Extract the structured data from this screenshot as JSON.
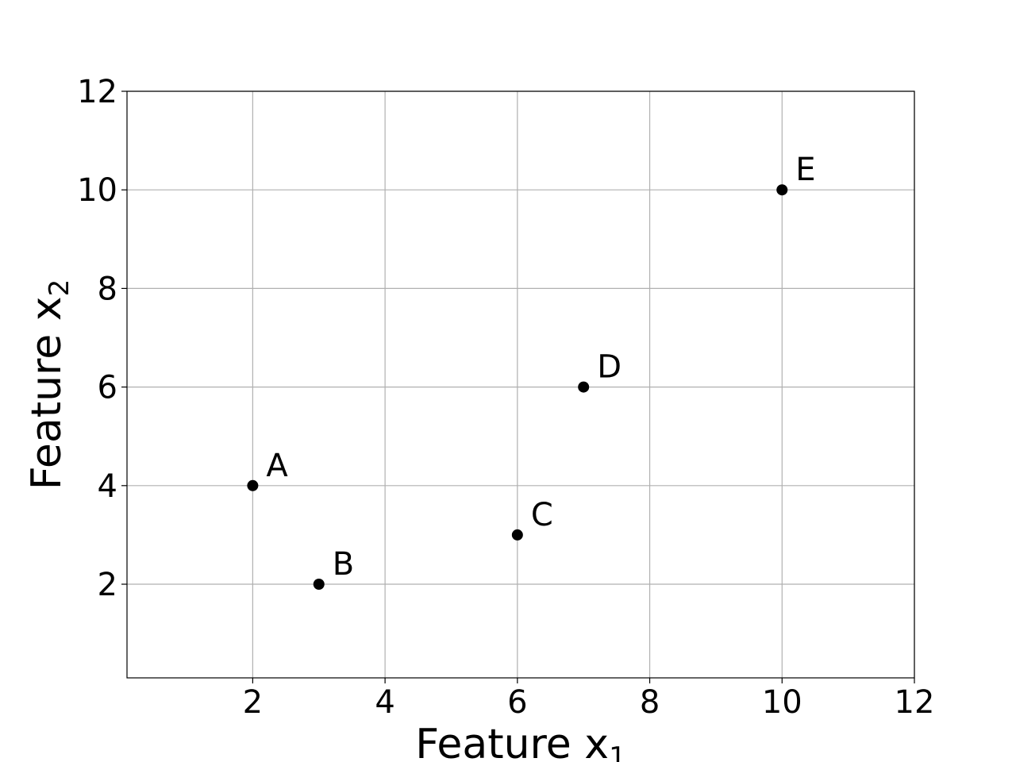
{
  "chart_data": {
    "type": "scatter",
    "title": "",
    "xlabel": "Feature x",
    "xlabel_sub": "1",
    "ylabel": "Feature x",
    "ylabel_sub": "2",
    "xlim": [
      0.1,
      12
    ],
    "ylim": [
      0.1,
      12
    ],
    "xticks": [
      2,
      4,
      6,
      8,
      10,
      12
    ],
    "yticks": [
      2,
      4,
      6,
      8,
      10,
      12
    ],
    "grid": true,
    "marker_color": "#000000",
    "points": [
      {
        "label": "A",
        "x": 2,
        "y": 4
      },
      {
        "label": "B",
        "x": 3,
        "y": 2
      },
      {
        "label": "C",
        "x": 6,
        "y": 3
      },
      {
        "label": "D",
        "x": 7,
        "y": 6
      },
      {
        "label": "E",
        "x": 10,
        "y": 10
      }
    ]
  }
}
